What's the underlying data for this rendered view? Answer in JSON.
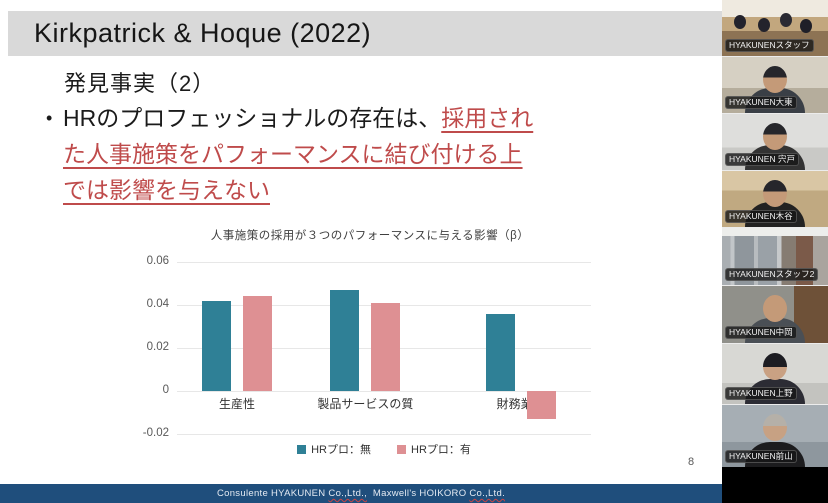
{
  "slide": {
    "header_title": "Kirkpatrick & Hoque (2022)",
    "section_title": "発見事実（2）",
    "bullet": {
      "marker": "•",
      "prefix": "HRのプロフェッショナルの存在は、",
      "highlight": "採用された人事施策をパフォーマンスに結び付ける上では影響を与えない"
    },
    "page_number": "8",
    "footer_segments": [
      {
        "text": "Consulente HYAKUNEN ",
        "underline": false
      },
      {
        "text": "Co.,Ltd.,",
        "underline": true
      },
      {
        "text": "  Maxwell's HOIKORO ",
        "underline": false
      },
      {
        "text": "Co.,Ltd.",
        "underline": true
      }
    ]
  },
  "chart_data": {
    "type": "bar",
    "title": "人事施策の採用が３つのパフォーマンスに与える影響（β）",
    "categories": [
      "生産性",
      "製品サービスの質",
      "財務業績"
    ],
    "series": [
      {
        "name": "HRプロ：無",
        "color": "#2f8096",
        "values": [
          0.042,
          0.047,
          0.036
        ]
      },
      {
        "name": "HRプロ：有",
        "color": "#de9093",
        "values": [
          0.044,
          0.041,
          -0.013
        ]
      }
    ],
    "yticks": [
      0.06,
      0.04,
      0.02,
      0,
      -0.02
    ],
    "ylim": [
      -0.02,
      0.06
    ],
    "xlabel": "",
    "ylabel": "",
    "grid": true,
    "legend_position": "bottom"
  },
  "participants": [
    {
      "name": "HYAKUNENスタッフ",
      "scene": "office-group"
    },
    {
      "name": "HYAKUNEN大東",
      "scene": "person"
    },
    {
      "name": "HYAKUNEN 宍戸",
      "scene": "person"
    },
    {
      "name": "HYAKUNEN木谷",
      "scene": "person"
    },
    {
      "name": "HYAKUNENスタッフ2",
      "scene": "cityscape"
    },
    {
      "name": "HYAKUNEN中岡",
      "scene": "person"
    },
    {
      "name": "HYAKUNEN上野",
      "scene": "person"
    },
    {
      "name": "HYAKUNEN前山",
      "scene": "person"
    }
  ],
  "colors": {
    "accent-red": "#bf4b4b",
    "bar-teal": "#2f8096",
    "bar-pink": "#de9093",
    "footer-navy": "#1f4e7c",
    "header-gray": "#d9d9d9"
  }
}
